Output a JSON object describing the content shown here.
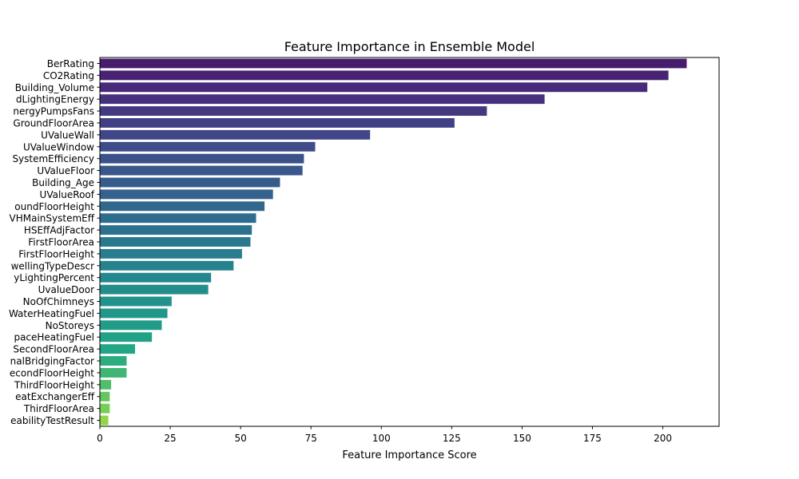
{
  "chart_data": {
    "type": "bar",
    "orientation": "horizontal",
    "title": "Feature Importance in Ensemble Model",
    "xlabel": "Feature Importance Score",
    "ylabel": "",
    "xlim": [
      0,
      220
    ],
    "xticks": [
      0,
      25,
      50,
      75,
      100,
      125,
      150,
      175,
      200
    ],
    "grid": false,
    "colormap": "viridis",
    "categories": [
      "BerRating",
      "CO2Rating",
      "Building_Volume",
      "dLightingEnergy",
      "nergyPumpsFans",
      "GroundFloorArea",
      "UValueWall",
      "UValueWindow",
      "SystemEfficiency",
      "UValueFloor",
      "Building_Age",
      "UValueRoof",
      "oundFloorHeight",
      "VHMainSystemEff",
      "HSEffAdjFactor",
      "FirstFloorArea",
      "FirstFloorHeight",
      "wellingTypeDescr",
      "yLightingPercent",
      "UvalueDoor",
      "NoOfChimneys",
      "WaterHeatingFuel",
      "NoStoreys",
      "paceHeatingFuel",
      "SecondFloorArea",
      "nalBridgingFactor",
      "econdFloorHeight",
      "ThirdFloorHeight",
      "eatExchangerEff",
      "ThirdFloorArea",
      "eabilityTestResult"
    ],
    "values": [
      208.5,
      202,
      194.5,
      158,
      137.5,
      126,
      96,
      76.5,
      72.5,
      72,
      64,
      61.5,
      58.5,
      55.5,
      54,
      53.5,
      50.5,
      47.5,
      39.5,
      38.5,
      25.5,
      24,
      22,
      18.5,
      12.5,
      9.5,
      9.5,
      4,
      3.5,
      3.5,
      3
    ]
  }
}
